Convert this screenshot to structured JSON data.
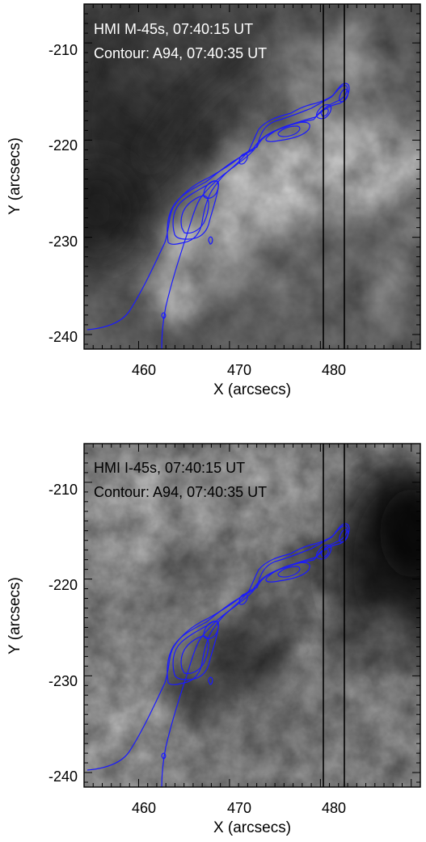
{
  "panels": [
    {
      "id": "top",
      "line1": "HMI M-45s, 07:40:15 UT",
      "line2": "Contour: A94, 07:40:35 UT",
      "text_color": "#ffffff",
      "image_kind": "magnetogram"
    },
    {
      "id": "bottom",
      "line1": "HMI I-45s, 07:40:15 UT",
      "line2": "Contour: A94, 07:40:35 UT",
      "text_color": "#000000",
      "image_kind": "continuum"
    }
  ],
  "axes": {
    "xlabel": "X (arcsecs)",
    "ylabel": "Y (arcsecs)",
    "x_ticks": [
      "460",
      "470",
      "480"
    ],
    "y_ticks": [
      "-210",
      "-220",
      "-230",
      "-240"
    ],
    "x_range": [
      454,
      491
    ],
    "y_range": [
      -241.5,
      -206
    ]
  },
  "slit_x_arcsec": [
    479,
    481
  ],
  "colors": {
    "contour": "#1a1aff",
    "slit": "#000000",
    "frame": "#000000"
  }
}
